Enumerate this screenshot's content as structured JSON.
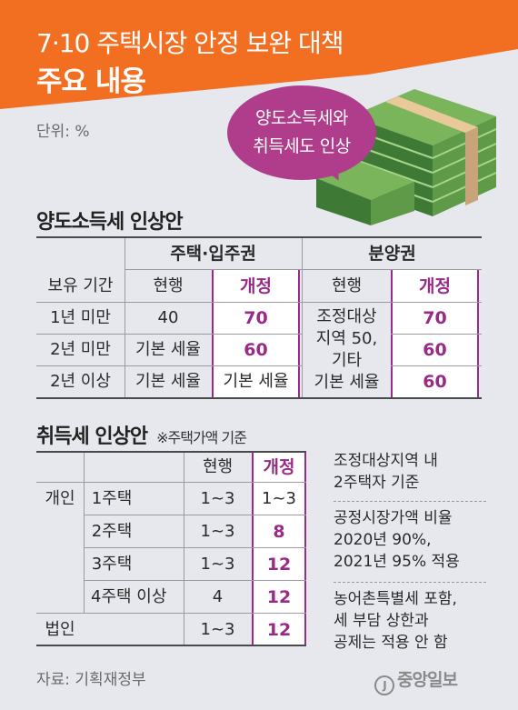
{
  "header": {
    "title_line1": "7·10 주택시장 안정 보완 대책",
    "title_line2": "주요 내용",
    "unit": "단위: %",
    "bubble_line1": "양도소득세와",
    "bubble_line2": "취득세도 인상"
  },
  "colors": {
    "banner": "#f26f21",
    "revised_accent": "#9a2a87",
    "bubble": "#b03d8c",
    "background": "#e6e8ee"
  },
  "capital_gains": {
    "title": "양도소득세 인상안",
    "group_housing": "주택·입주권",
    "group_presale": "분양권",
    "col_period": "보유 기간",
    "col_current": "현행",
    "col_revised": "개정",
    "rows": [
      {
        "period": "1년 미만",
        "house_current": "40",
        "house_revised": "70",
        "presale_revised": "70"
      },
      {
        "period": "2년 미만",
        "house_current": "기본 세율",
        "house_revised": "60",
        "presale_revised": "60"
      },
      {
        "period": "2년 이상",
        "house_current": "기본 세율",
        "house_revised": "기본 세율",
        "presale_revised": "60"
      }
    ],
    "presale_current_lines": [
      "조정대상",
      "지역 50,",
      "기타",
      "기본 세율"
    ]
  },
  "acquisition": {
    "title": "취득세 인상안",
    "note": "※주택가액 기준",
    "col_current": "현행",
    "col_revised": "개정",
    "rows": [
      {
        "owner": "개인",
        "type": "1주택",
        "current": "1~3",
        "revised": "1~3"
      },
      {
        "owner": "",
        "type": "2주택",
        "current": "1~3",
        "revised": "8"
      },
      {
        "owner": "",
        "type": "3주택",
        "current": "1~3",
        "revised": "12"
      },
      {
        "owner": "",
        "type": "4주택 이상",
        "current": "4",
        "revised": "12"
      },
      {
        "owner": "법인",
        "type": "",
        "current": "1~3",
        "revised": "12"
      }
    ],
    "notes": [
      [
        "조정대상지역 내",
        "2주택자 기준"
      ],
      [
        "공정시장가액 비율",
        "2020년 90%,",
        "2021년 95% 적용"
      ],
      [
        "농어촌특별세 포함,",
        "세 부담 상한과",
        "공제는 적용 안 함"
      ]
    ]
  },
  "footer": {
    "source": "자료: 기획재정부",
    "logo_mark": "J",
    "logo": "중앙일보"
  }
}
